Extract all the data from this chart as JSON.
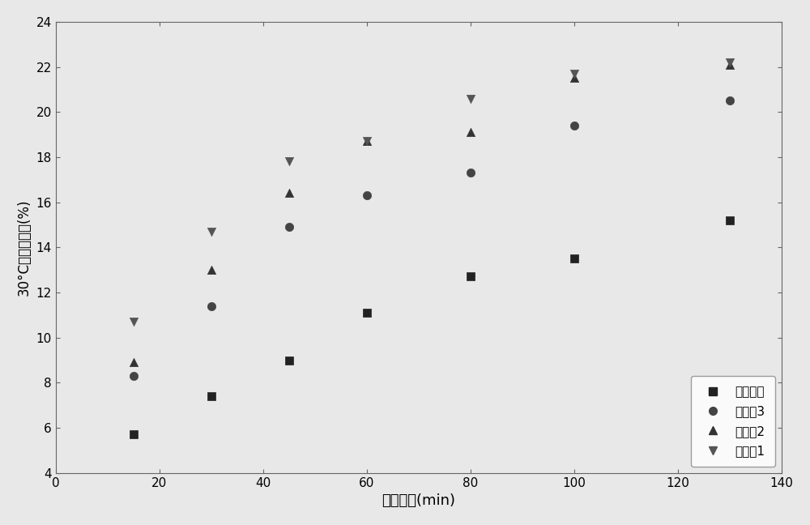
{
  "x_values": [
    15,
    30,
    45,
    60,
    80,
    100,
    130
  ],
  "series": {
    "原料糙米": {
      "y": [
        5.7,
        7.4,
        9.0,
        11.1,
        12.7,
        13.5,
        15.2
      ],
      "marker": "s",
      "color": "#222222",
      "label": "原料糙米"
    },
    "实施例3": {
      "y": [
        8.3,
        11.4,
        14.9,
        16.3,
        17.3,
        19.4,
        20.5
      ],
      "marker": "o",
      "color": "#444444",
      "label": "实施例3"
    },
    "实施例2": {
      "y": [
        8.9,
        13.0,
        16.4,
        18.7,
        19.1,
        21.5,
        22.1
      ],
      "marker": "^",
      "color": "#333333",
      "label": "实施例2"
    },
    "实施例1": {
      "y": [
        10.7,
        14.7,
        17.8,
        18.7,
        20.6,
        21.7,
        22.2
      ],
      "marker": "v",
      "color": "#555555",
      "label": "实施例1"
    }
  },
  "xlabel": "浸泡时间(min)",
  "ylabel": "30°C浸泡吸水率(%)",
  "xlim": [
    0,
    140
  ],
  "ylim": [
    4,
    24
  ],
  "xticks": [
    0,
    20,
    40,
    60,
    80,
    100,
    120,
    140
  ],
  "yticks": [
    4,
    6,
    8,
    10,
    12,
    14,
    16,
    18,
    20,
    22,
    24
  ],
  "legend_order": [
    "原料糙米",
    "实施例3",
    "实施例2",
    "实施例1"
  ],
  "background_color": "#e8e8e8",
  "plot_bg_color": "#e8e8e8",
  "fit_color": "#aaaaaa",
  "figsize": [
    10.0,
    6.48
  ],
  "dpi": 100
}
